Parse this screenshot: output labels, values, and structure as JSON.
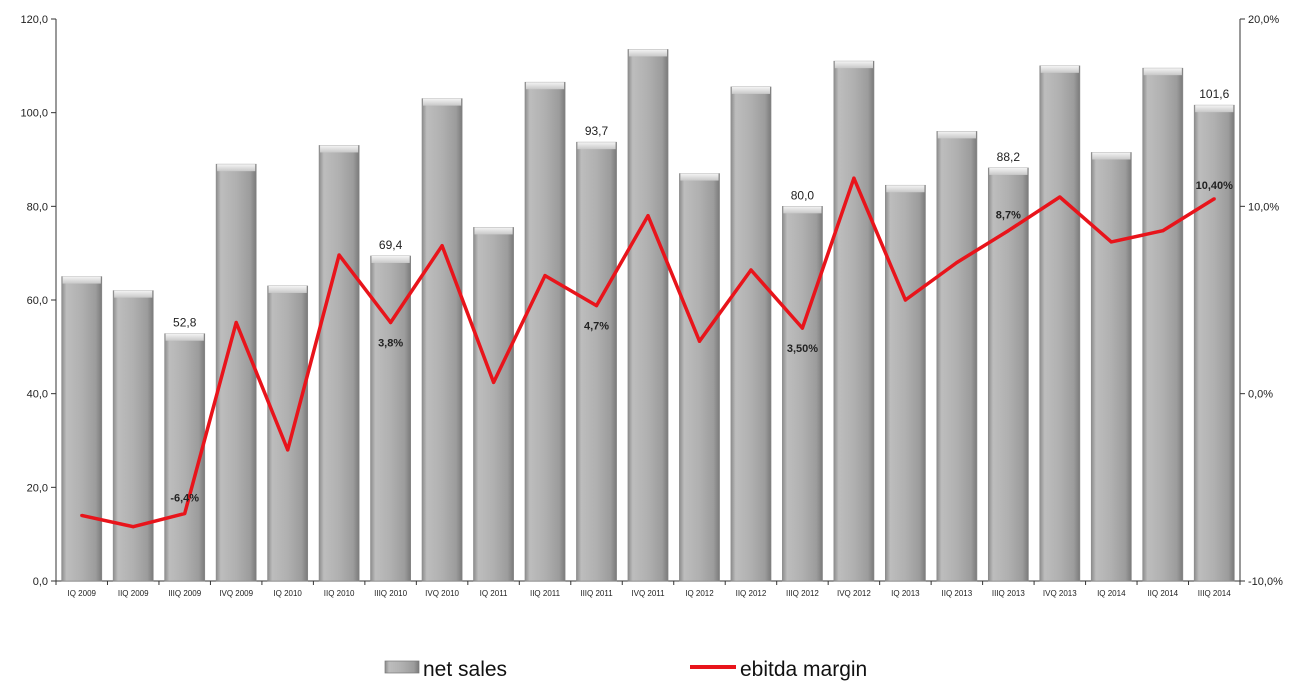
{
  "chart_data": {
    "type": "bar+line",
    "categories": [
      "IQ 2009",
      "IIQ 2009",
      "IIIQ 2009",
      "IVQ 2009",
      "IQ 2010",
      "IIQ 2010",
      "IIIQ 2010",
      "IVQ 2010",
      "IQ 2011",
      "IIQ 2011",
      "IIIQ 2011",
      "IVQ 2011",
      "IQ 2012",
      "IIQ 2012",
      "IIIQ 2012",
      "IVQ 2012",
      "IQ 2013",
      "IIQ 2013",
      "IIIQ 2013",
      "IVQ 2013",
      "IQ 2014",
      "IIQ 2014",
      "IIIQ 2014"
    ],
    "series": [
      {
        "name": "net sales",
        "type": "bar",
        "axis": "left",
        "color": "#a9a9a9",
        "values": [
          65.0,
          62.0,
          52.8,
          89.0,
          63.0,
          93.0,
          69.4,
          103.0,
          75.5,
          106.5,
          93.7,
          113.5,
          87.0,
          105.5,
          80.0,
          111.0,
          84.5,
          96.0,
          88.2,
          110.0,
          91.5,
          109.5,
          101.6
        ],
        "labels": [
          "",
          "",
          "52,8",
          "",
          "",
          "",
          "69,4",
          "",
          "",
          "",
          "93,7",
          "",
          "",
          "",
          "80,0",
          "",
          "",
          "",
          "88,2",
          "",
          "",
          "",
          "101,6"
        ]
      },
      {
        "name": "ebitda margin",
        "type": "line",
        "axis": "right",
        "color": "#e8141b",
        "values": [
          -6.5,
          -7.1,
          -6.4,
          3.8,
          -3.0,
          7.4,
          3.8,
          7.9,
          0.6,
          6.3,
          4.7,
          9.5,
          2.8,
          6.6,
          3.5,
          11.5,
          5.0,
          7.0,
          8.7,
          10.5,
          8.1,
          8.7,
          10.4
        ],
        "labels": [
          "",
          "",
          "-6,4%",
          "",
          "",
          "",
          "3,8%",
          "",
          "",
          "",
          "4,7%",
          "",
          "",
          "",
          "3,50%",
          "",
          "",
          "",
          "8,7%",
          "",
          "",
          "",
          "10,40%"
        ]
      }
    ],
    "left_axis": {
      "min": 0,
      "max": 120,
      "step": 20,
      "tick_labels": [
        "0,0",
        "20,0",
        "40,0",
        "60,0",
        "80,0",
        "100,0",
        "120,0"
      ]
    },
    "right_axis": {
      "min": -10,
      "max": 20,
      "step": 10,
      "tick_labels": [
        "-10,0%",
        "0,0%",
        "10,0%",
        "20,0%"
      ]
    },
    "grid": false,
    "legend": {
      "placement": "bottom-center",
      "entries": [
        "net sales",
        "ebitda margin"
      ]
    }
  }
}
